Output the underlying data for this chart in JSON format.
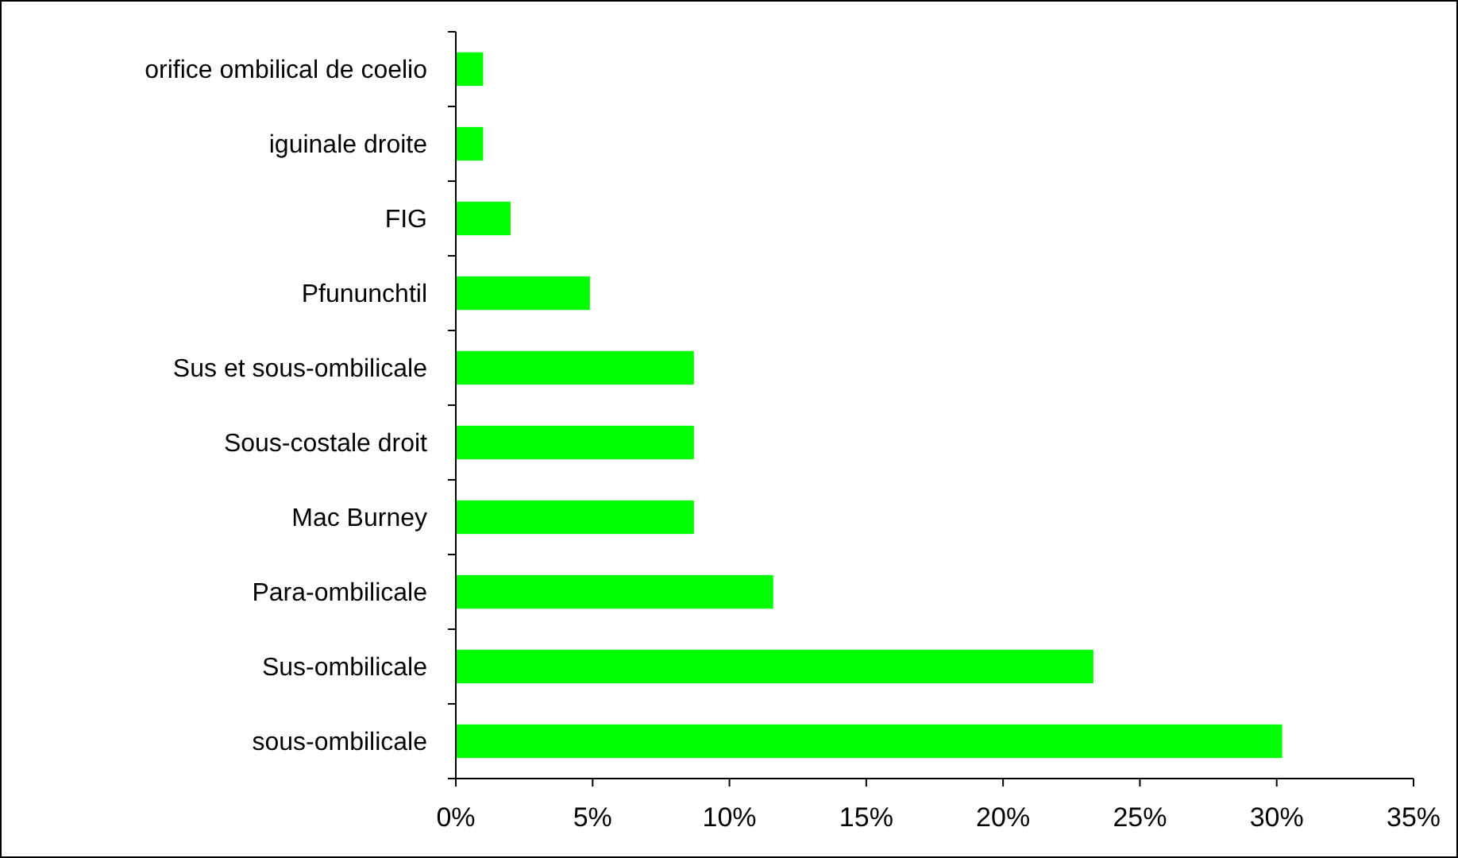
{
  "chart_data": {
    "type": "bar",
    "orientation": "horizontal",
    "categories": [
      "orifice ombilical de coelio",
      "iguinale droite",
      "FIG",
      "Pfununchtil",
      "Sus et sous-ombilicale",
      "Sous-costale droit",
      "Mac Burney",
      "Para-ombilicale",
      "Sus-ombilicale",
      "sous-ombilicale"
    ],
    "values": [
      1.0,
      1.0,
      2.0,
      4.9,
      8.7,
      8.7,
      8.7,
      11.6,
      23.3,
      30.2
    ],
    "color": "#00ff00",
    "xlim": [
      0,
      35
    ],
    "xticks": [
      {
        "value": 0,
        "label": "0%"
      },
      {
        "value": 5,
        "label": "5%"
      },
      {
        "value": 10,
        "label": "10%"
      },
      {
        "value": 15,
        "label": "15%"
      },
      {
        "value": 20,
        "label": "20%"
      },
      {
        "value": 25,
        "label": "25%"
      },
      {
        "value": 30,
        "label": "30%"
      },
      {
        "value": 35,
        "label": "35%"
      }
    ],
    "grid": false
  }
}
